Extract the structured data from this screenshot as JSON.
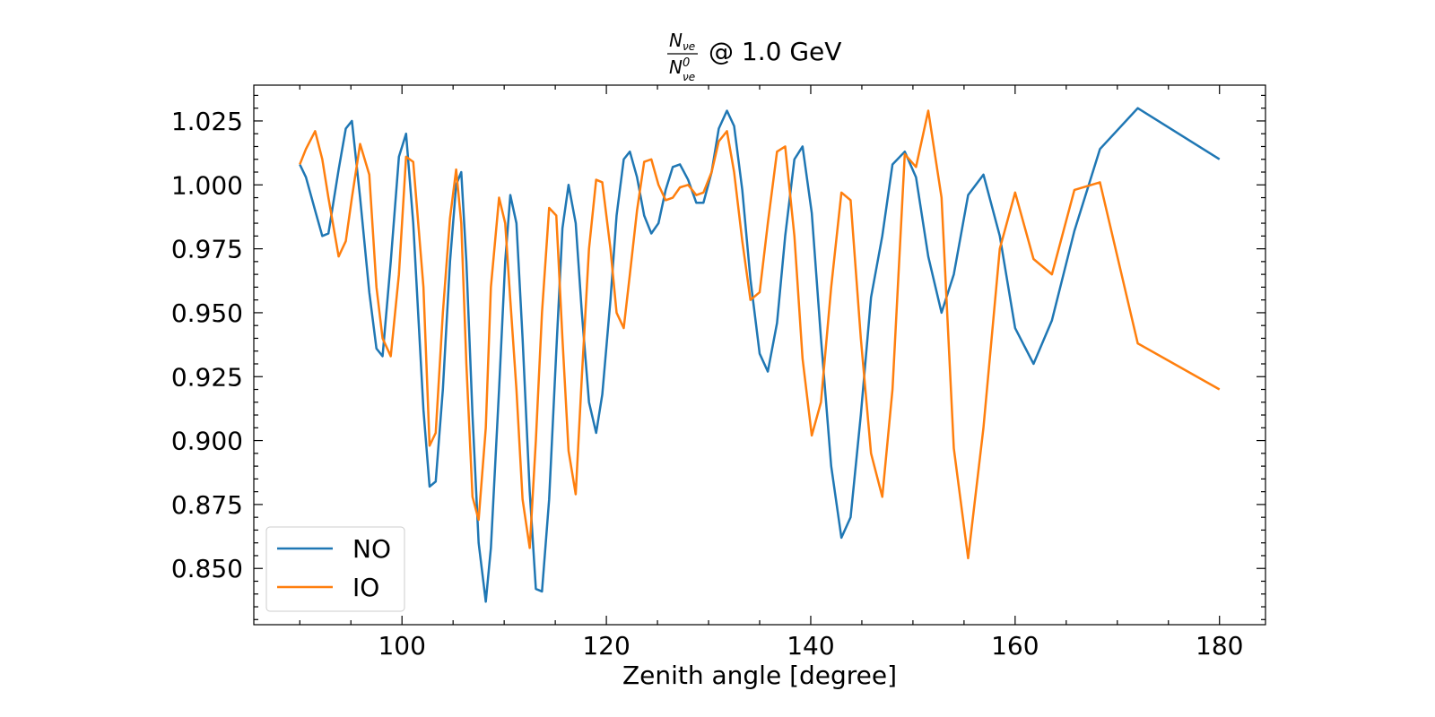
{
  "chart_data": {
    "type": "line",
    "title": {
      "numerator": {
        "base": "N",
        "sub": "νe"
      },
      "denominator": {
        "base": "N",
        "sup": "0",
        "sub": "νe"
      },
      "text": "@ 1.0 GeV"
    },
    "xlabel": "Zenith angle [degree]",
    "x": [
      90.0,
      90.6,
      91.5,
      92.2,
      92.8,
      93.8,
      94.5,
      95.1,
      95.9,
      96.8,
      97.5,
      98.1,
      98.9,
      99.7,
      100.4,
      101.1,
      102.1,
      102.7,
      103.3,
      104.0,
      104.7,
      105.3,
      105.8,
      106.3,
      106.9,
      107.5,
      108.2,
      108.7,
      109.5,
      110.1,
      110.6,
      111.2,
      111.8,
      112.5,
      113.1,
      113.7,
      114.4,
      115.1,
      115.7,
      116.3,
      117.0,
      117.6,
      118.3,
      119.0,
      119.6,
      120.4,
      121.0,
      121.7,
      122.3,
      123.0,
      123.7,
      124.4,
      125.1,
      125.8,
      126.5,
      127.2,
      128.0,
      128.8,
      129.5,
      130.3,
      131.0,
      131.8,
      132.5,
      133.3,
      134.1,
      135.0,
      135.8,
      136.7,
      137.5,
      138.4,
      139.2,
      140.1,
      141.0,
      142.0,
      143.0,
      143.9,
      144.9,
      145.9,
      147.0,
      148.0,
      149.2,
      150.3,
      151.5,
      152.8,
      154.0,
      155.4,
      156.9,
      158.5,
      160.0,
      161.8,
      163.6,
      165.8,
      168.3,
      172.0,
      180.0
    ],
    "series": [
      {
        "name": "NO",
        "color": "#1f77b4",
        "values": [
          1.008,
          1.003,
          0.99,
          0.98,
          0.981,
          1.006,
          1.022,
          1.025,
          0.995,
          0.958,
          0.936,
          0.933,
          0.97,
          1.011,
          1.02,
          0.985,
          0.912,
          0.882,
          0.884,
          0.92,
          0.97,
          1.0,
          1.005,
          0.97,
          0.91,
          0.86,
          0.837,
          0.858,
          0.92,
          0.97,
          0.996,
          0.985,
          0.94,
          0.88,
          0.842,
          0.841,
          0.877,
          0.935,
          0.983,
          1.0,
          0.985,
          0.95,
          0.915,
          0.903,
          0.918,
          0.955,
          0.988,
          1.01,
          1.013,
          1.003,
          0.988,
          0.981,
          0.985,
          0.998,
          1.007,
          1.008,
          1.002,
          0.993,
          0.993,
          1.005,
          1.022,
          1.029,
          1.023,
          0.998,
          0.963,
          0.934,
          0.927,
          0.946,
          0.98,
          1.01,
          1.015,
          0.989,
          0.94,
          0.89,
          0.862,
          0.87,
          0.91,
          0.956,
          0.98,
          1.008,
          1.013,
          1.003,
          0.972,
          0.95,
          0.965,
          0.996,
          1.004,
          0.98,
          0.944,
          0.93,
          0.947,
          0.982,
          1.014,
          1.03,
          1.01
        ]
      },
      {
        "name": "IO",
        "color": "#ff7f0e",
        "values": [
          1.008,
          1.014,
          1.021,
          1.01,
          0.995,
          0.972,
          0.978,
          0.995,
          1.016,
          1.004,
          0.96,
          0.94,
          0.933,
          0.965,
          1.011,
          1.009,
          0.96,
          0.898,
          0.903,
          0.95,
          0.987,
          1.006,
          0.985,
          0.93,
          0.878,
          0.869,
          0.905,
          0.96,
          0.995,
          0.985,
          0.955,
          0.92,
          0.877,
          0.858,
          0.9,
          0.95,
          0.991,
          0.988,
          0.94,
          0.896,
          0.879,
          0.925,
          0.975,
          1.002,
          1.001,
          0.975,
          0.95,
          0.944,
          0.965,
          0.99,
          1.009,
          1.01,
          1.0,
          0.994,
          0.995,
          0.999,
          1.0,
          0.996,
          0.997,
          1.005,
          1.017,
          1.021,
          1.005,
          0.978,
          0.955,
          0.958,
          0.985,
          1.013,
          1.015,
          0.98,
          0.932,
          0.902,
          0.915,
          0.96,
          0.997,
          0.994,
          0.94,
          0.895,
          0.878,
          0.92,
          1.012,
          1.007,
          1.029,
          0.995,
          0.897,
          0.854,
          0.905,
          0.975,
          0.997,
          0.971,
          0.965,
          0.998,
          1.001,
          0.938,
          0.92
        ]
      }
    ],
    "xlim": [
      85.5,
      184.5
    ],
    "ylim": [
      0.828,
      1.039
    ],
    "xticks": [
      100,
      120,
      140,
      160,
      180
    ],
    "yticks": [
      {
        "value": 0.85,
        "label": "0.850"
      },
      0.875,
      {
        "value": 0.9,
        "label": "0.900"
      },
      0.925,
      {
        "value": 0.95,
        "label": "0.950"
      },
      0.975,
      {
        "value": 1,
        "label": "1.000"
      },
      1.025
    ],
    "xminorticks": [
      90,
      95,
      105,
      110,
      115,
      125,
      130,
      135,
      145,
      150,
      155,
      165,
      170,
      175
    ],
    "yminorticks": [
      0.83,
      0.835,
      0.84,
      0.845,
      0.855,
      0.86,
      0.865,
      0.87,
      0.88,
      0.885,
      0.89,
      0.895,
      0.905,
      0.91,
      0.915,
      0.92,
      0.93,
      0.935,
      0.94,
      0.945,
      0.955,
      0.96,
      0.965,
      0.97,
      0.98,
      0.985,
      0.99,
      0.995,
      1.005,
      1.01,
      1.015,
      1.02,
      1.03,
      1.035
    ],
    "legend": "lower left",
    "grid": false
  }
}
